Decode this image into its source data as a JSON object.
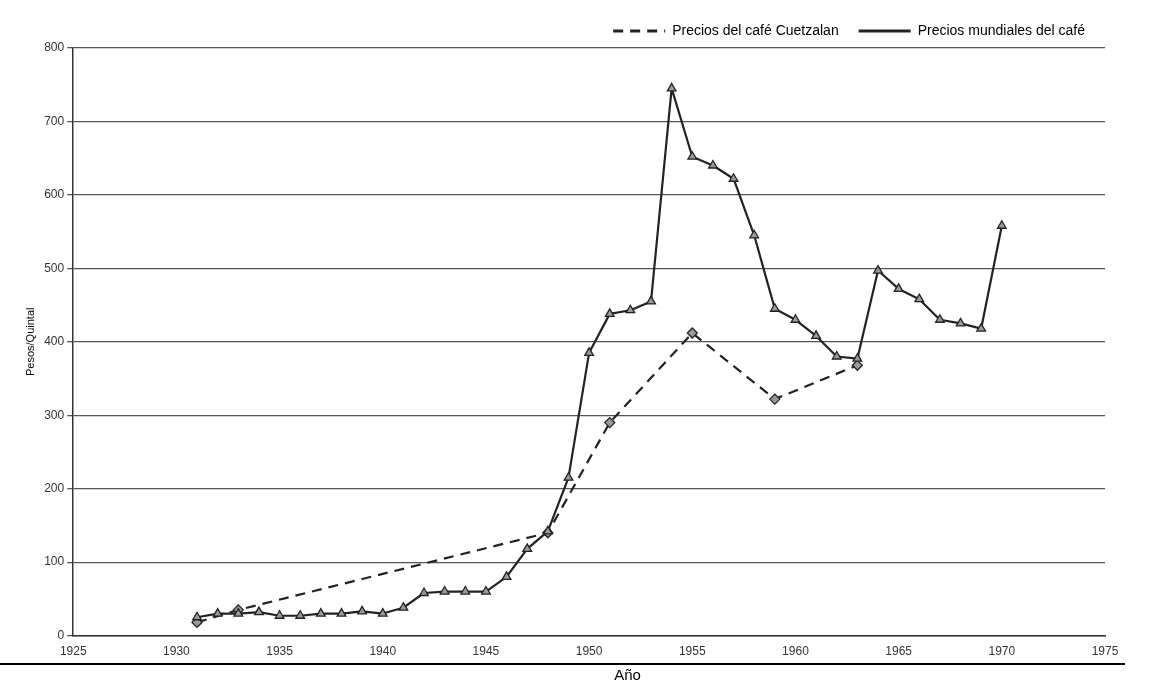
{
  "chart_data": {
    "type": "line",
    "xlabel": "Año",
    "ylabel": "Pesos/Quintal",
    "xlim": [
      1925,
      1975
    ],
    "xticks": [
      1925,
      1930,
      1935,
      1940,
      1945,
      1950,
      1955,
      1960,
      1965,
      1970,
      1975
    ],
    "ylim": [
      0,
      800
    ],
    "yticks": [
      0,
      100,
      200,
      300,
      400,
      500,
      600,
      700,
      800
    ],
    "grid": "y",
    "legend": "top",
    "series": [
      {
        "name": "Precios del café Cuetzalan",
        "color": "#222222",
        "line_style": "dashed",
        "marker": "diamond",
        "x": [
          1931,
          1933,
          1948,
          1951,
          1955,
          1959,
          1963
        ],
        "values": [
          18,
          35,
          140,
          290,
          412,
          322,
          368
        ]
      },
      {
        "name": "Precios mundiales del café",
        "color": "#222222",
        "line_style": "solid",
        "marker": "triangle",
        "x": [
          1931,
          1932,
          1933,
          1934,
          1935,
          1936,
          1937,
          1938,
          1939,
          1940,
          1941,
          1942,
          1943,
          1944,
          1945,
          1946,
          1947,
          1948,
          1949,
          1950,
          1951,
          1952,
          1953,
          1954,
          1955,
          1956,
          1957,
          1958,
          1959,
          1960,
          1961,
          1962,
          1963,
          1964,
          1965,
          1966,
          1967,
          1968,
          1969,
          1970
        ],
        "values": [
          25,
          30,
          30,
          32,
          27,
          27,
          30,
          30,
          33,
          30,
          38,
          58,
          60,
          60,
          60,
          80,
          118,
          142,
          215,
          385,
          438,
          443,
          455,
          745,
          652,
          640,
          622,
          545,
          445,
          430,
          408,
          380,
          377,
          497,
          472,
          458,
          430,
          425,
          418,
          558
        ]
      }
    ]
  }
}
